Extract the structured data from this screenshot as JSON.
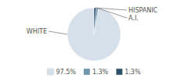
{
  "chart_data": {
    "type": "pie",
    "categories": [
      "WHITE",
      "A.I.",
      "HISPANIC"
    ],
    "values": [
      97.5,
      1.3,
      1.3
    ],
    "value_labels": [
      "97.5%",
      "1.3%",
      "1.3%"
    ],
    "colors": [
      "#d6e0ea",
      "#7196af",
      "#2d506b"
    ],
    "legend": "bottom"
  }
}
